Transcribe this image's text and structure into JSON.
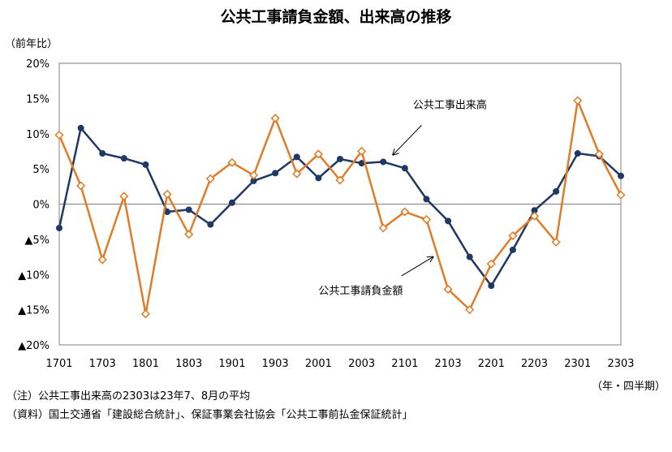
{
  "title": "公共工事請負金額、出来高の推移",
  "ylabel": "（前年比）",
  "xlabel": "（年・四半期）",
  "notes": {
    "note": "（注）公共工事出来高の2303は23年7、8月の平均",
    "source": "（資料）国土交通省「建設総合統計」、保証事業会社協会「公共工事前払金保証統計」"
  },
  "chart_data": {
    "type": "line",
    "title": "公共工事請負金額、出来高の推移",
    "ylabel": "（前年比）",
    "xlabel": "（年・四半期）",
    "ylim": [
      -20,
      20
    ],
    "grid": false,
    "y_ticks": [
      {
        "value": 20,
        "label": "20%"
      },
      {
        "value": 15,
        "label": "15%"
      },
      {
        "value": 10,
        "label": "10%"
      },
      {
        "value": 5,
        "label": "5%"
      },
      {
        "value": 0,
        "label": "0%"
      },
      {
        "value": -5,
        "label": "▲5%"
      },
      {
        "value": -10,
        "label": "▲10%"
      },
      {
        "value": -15,
        "label": "▲15%"
      },
      {
        "value": -20,
        "label": "▲20%"
      }
    ],
    "x_categories": [
      "1701",
      "1702",
      "1703",
      "1704",
      "1801",
      "1802",
      "1803",
      "1804",
      "1901",
      "1902",
      "1903",
      "1904",
      "2001",
      "2002",
      "2003",
      "2004",
      "2101",
      "2102",
      "2103",
      "2104",
      "2201",
      "2202",
      "2203",
      "2204",
      "2301",
      "2302",
      "2303"
    ],
    "x_tick_labels": [
      "1701",
      "1703",
      "1801",
      "1803",
      "1901",
      "1903",
      "2001",
      "2003",
      "2101",
      "2103",
      "2201",
      "2203",
      "2301",
      "2303"
    ],
    "series": [
      {
        "name": "公共工事出来高",
        "color": "#1f3864",
        "marker": "filled-circle",
        "values": [
          -3.4,
          10.8,
          7.2,
          6.5,
          5.6,
          -1.1,
          -0.8,
          -2.9,
          0.2,
          3.3,
          4.4,
          6.7,
          3.7,
          6.4,
          5.8,
          6.0,
          5.1,
          0.7,
          -2.4,
          -7.5,
          -11.6,
          -6.5,
          -0.9,
          1.8,
          7.2,
          6.8,
          4.0
        ]
      },
      {
        "name": "公共工事請負金額",
        "color": "#e07b27",
        "marker": "open-diamond",
        "values": [
          9.8,
          2.6,
          -7.9,
          1.1,
          -15.6,
          1.4,
          -4.3,
          3.6,
          5.9,
          4.1,
          12.2,
          4.3,
          7.1,
          3.4,
          7.5,
          -3.4,
          -1.1,
          -2.2,
          -12.1,
          -15.0,
          -8.5,
          -4.5,
          -1.7,
          -5.4,
          14.7,
          7.1,
          1.3
        ]
      }
    ],
    "annotations": [
      {
        "text": "公共工事出来高",
        "series": "公共工事出来高"
      },
      {
        "text": "公共工事請負金額",
        "series": "公共工事請負金額"
      }
    ]
  }
}
